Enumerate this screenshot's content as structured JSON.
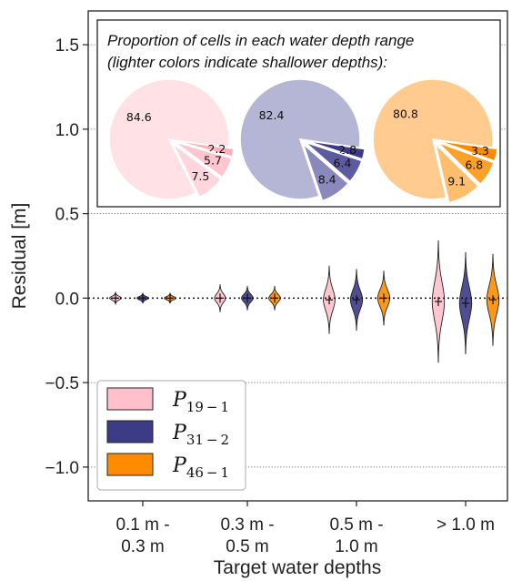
{
  "chart_data": {
    "type": "violin",
    "xlabel": "Target water depths",
    "ylabel": "Residual [m]",
    "ylim": [
      -1.2,
      1.7
    ],
    "yticks": [
      -1.0,
      -0.5,
      0.0,
      0.5,
      1.0,
      1.5
    ],
    "ytick_labels": [
      "−1.0",
      "−0.5",
      "0.0",
      "0.5",
      "1.0",
      "1.5"
    ],
    "grid": "horizontal dotted at y ticks",
    "zero_line": "dotted black at 0.0",
    "categories": [
      {
        "line1": "0.1 m -",
        "line2": "0.3 m"
      },
      {
        "line1": "0.3 m -",
        "line2": "0.5 m"
      },
      {
        "line1": "0.5 m -",
        "line2": "1.0 m"
      },
      {
        "line1": "> 1.0 m",
        "line2": ""
      }
    ],
    "legend_position": "lower-left",
    "series": [
      {
        "symbol": "P",
        "sub": "19 − 1",
        "color": "#ffc0cb",
        "spread": [
          0.035,
          0.08,
          0.2,
          0.36
        ],
        "max_half_width": [
          0.4,
          0.38,
          0.4,
          0.42
        ],
        "median": [
          0.0,
          0.0,
          -0.01,
          -0.02
        ]
      },
      {
        "symbol": "P",
        "sub": "31 − 2",
        "color": "#3c3b86",
        "spread": [
          0.03,
          0.07,
          0.18,
          0.3
        ],
        "max_half_width": [
          0.4,
          0.4,
          0.42,
          0.42
        ],
        "median": [
          0.0,
          0.0,
          -0.01,
          -0.03
        ]
      },
      {
        "symbol": "P",
        "sub": "46 − 1",
        "color": "#ff8c00",
        "spread": [
          0.03,
          0.07,
          0.16,
          0.27
        ],
        "max_half_width": [
          0.4,
          0.4,
          0.42,
          0.42
        ],
        "median": [
          0.0,
          0.0,
          0.0,
          -0.01
        ]
      }
    ],
    "inset": {
      "title_line1": "Proportion of cells in each water depth range",
      "title_line2": "(lighter colors indicate shallower depths):",
      "pies": [
        {
          "values": [
            84.6,
            2.2,
            5.7,
            7.5
          ],
          "labels": [
            "84.6",
            "2.2",
            "5.7",
            "7.5"
          ],
          "colors": [
            "#ffe1e6",
            "#ffb1bf",
            "#ffc6d0",
            "#ffd6de"
          ]
        },
        {
          "values": [
            82.4,
            2.8,
            6.4,
            8.4
          ],
          "labels": [
            "82.4",
            "2.8",
            "6.4",
            "8.4"
          ],
          "colors": [
            "#b5b5d6",
            "#3c3b86",
            "#5c5ba0",
            "#8a89bc"
          ]
        },
        {
          "values": [
            80.8,
            3.3,
            6.8,
            9.1
          ],
          "labels": [
            "80.8",
            "3.3",
            "6.8",
            "9.1"
          ],
          "colors": [
            "#ffcb8e",
            "#ff8c00",
            "#ffa028",
            "#ffbd6e"
          ]
        }
      ]
    }
  }
}
